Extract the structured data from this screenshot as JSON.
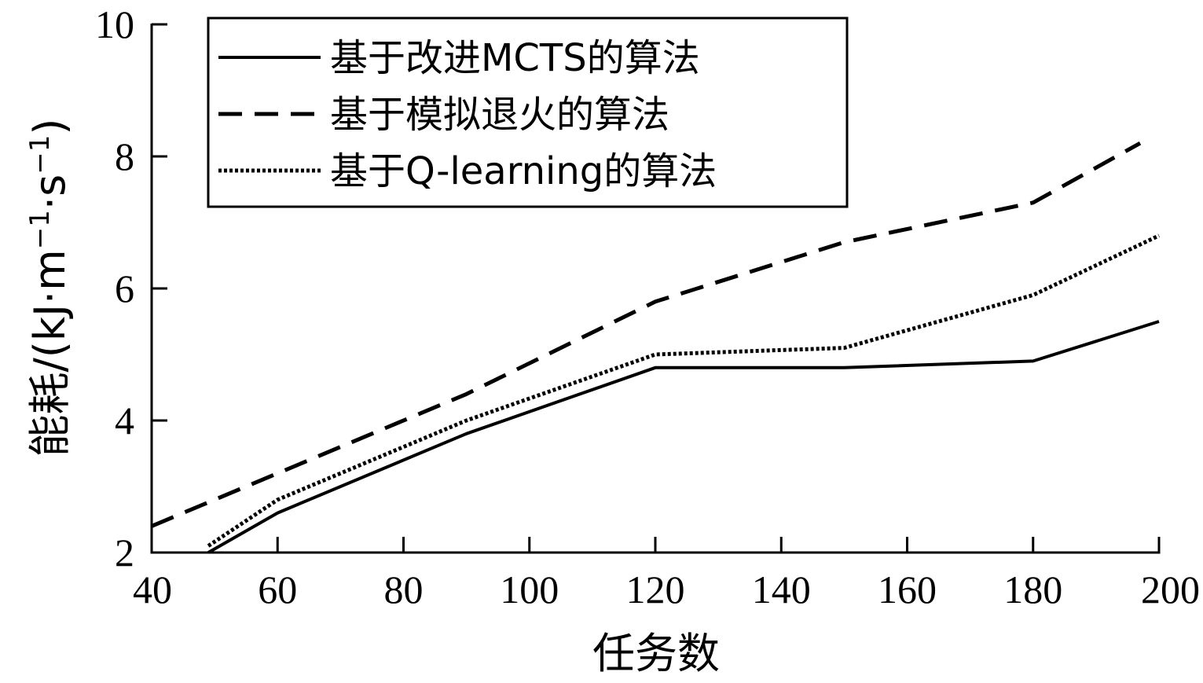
{
  "chart_data": {
    "type": "line",
    "xlabel": "任务数",
    "ylabel_main": "能耗/(kJ·m",
    "ylabel_sup1": "−1",
    "ylabel_mid": "·s",
    "ylabel_sup2": "−1",
    "ylabel_end": ")",
    "xlim": [
      40,
      200
    ],
    "ylim": [
      2,
      10
    ],
    "xticks": [
      40,
      60,
      80,
      100,
      120,
      140,
      160,
      180,
      200
    ],
    "yticks": [
      2,
      4,
      6,
      8,
      10
    ],
    "grid": false,
    "legend_position": "top-left",
    "series": [
      {
        "name": "基于改进MCTS的算法",
        "style": "solid",
        "color": "#000000",
        "x": [
          49,
          60,
          90,
          120,
          150,
          180,
          200
        ],
        "y": [
          2.0,
          2.6,
          3.8,
          4.8,
          4.8,
          4.9,
          5.5
        ]
      },
      {
        "name": "基于模拟退火的算法",
        "style": "dashed",
        "color": "#000000",
        "x": [
          40,
          60,
          90,
          120,
          150,
          180,
          197
        ],
        "y": [
          2.4,
          3.2,
          4.4,
          5.8,
          6.7,
          7.3,
          8.2
        ]
      },
      {
        "name": "基于Q-learning的算法",
        "style": "dotted",
        "color": "#000000",
        "x": [
          49,
          60,
          90,
          120,
          150,
          180,
          200
        ],
        "y": [
          2.1,
          2.8,
          4.0,
          5.0,
          5.1,
          5.9,
          6.8
        ]
      }
    ]
  }
}
